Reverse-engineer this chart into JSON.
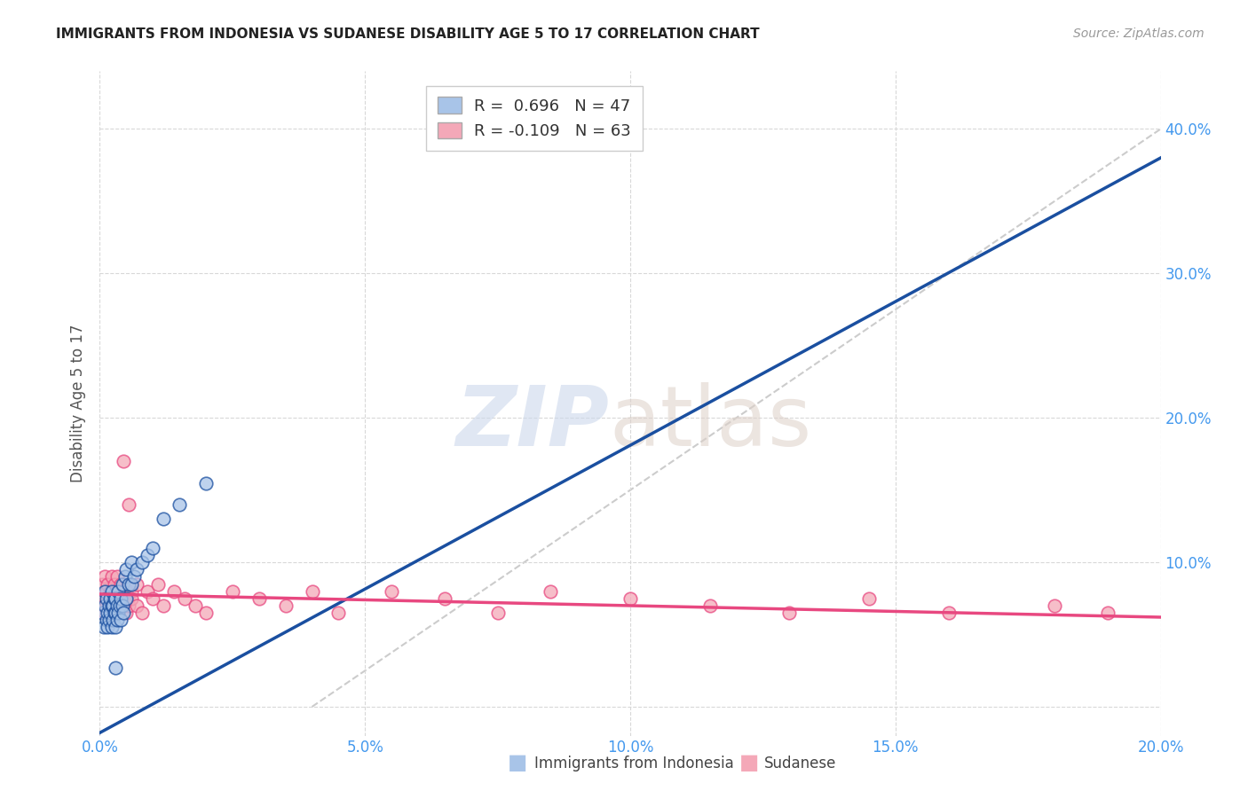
{
  "title": "IMMIGRANTS FROM INDONESIA VS SUDANESE DISABILITY AGE 5 TO 17 CORRELATION CHART",
  "source": "Source: ZipAtlas.com",
  "ylabel": "Disability Age 5 to 17",
  "xlim": [
    0.0,
    0.2
  ],
  "ylim": [
    -0.02,
    0.44
  ],
  "xticks": [
    0.0,
    0.05,
    0.1,
    0.15,
    0.2
  ],
  "yticks": [
    0.0,
    0.1,
    0.2,
    0.3,
    0.4
  ],
  "xtick_labels": [
    "0.0%",
    "5.0%",
    "10.0%",
    "15.0%",
    "20.0%"
  ],
  "ytick_labels": [
    "",
    "10.0%",
    "20.0%",
    "30.0%",
    "40.0%"
  ],
  "background_color": "#ffffff",
  "grid_color": "#d8d8d8",
  "blue_R": "0.696",
  "blue_N": "47",
  "pink_R": "-0.109",
  "pink_N": "63",
  "blue_color": "#a8c4e8",
  "pink_color": "#f4a8b8",
  "blue_line_color": "#1a4fa0",
  "pink_line_color": "#e84880",
  "ref_line_color": "#cccccc",
  "legend_label_blue": "Immigrants from Indonesia",
  "legend_label_pink": "Sudanese",
  "blue_x": [
    0.0005,
    0.0008,
    0.001,
    0.001,
    0.0012,
    0.0013,
    0.0015,
    0.0015,
    0.0017,
    0.0018,
    0.002,
    0.002,
    0.0022,
    0.0022,
    0.0023,
    0.0025,
    0.0025,
    0.0027,
    0.0028,
    0.003,
    0.003,
    0.003,
    0.0032,
    0.0033,
    0.0035,
    0.0035,
    0.0038,
    0.004,
    0.004,
    0.0042,
    0.0043,
    0.0045,
    0.0047,
    0.005,
    0.005,
    0.0055,
    0.006,
    0.006,
    0.0065,
    0.007,
    0.008,
    0.009,
    0.01,
    0.012,
    0.015,
    0.02,
    0.003
  ],
  "blue_y": [
    0.065,
    0.055,
    0.07,
    0.08,
    0.06,
    0.075,
    0.055,
    0.065,
    0.07,
    0.06,
    0.065,
    0.075,
    0.055,
    0.07,
    0.08,
    0.06,
    0.07,
    0.065,
    0.075,
    0.055,
    0.065,
    0.075,
    0.06,
    0.07,
    0.065,
    0.08,
    0.07,
    0.075,
    0.06,
    0.085,
    0.07,
    0.065,
    0.09,
    0.075,
    0.095,
    0.085,
    0.1,
    0.085,
    0.09,
    0.095,
    0.1,
    0.105,
    0.11,
    0.13,
    0.14,
    0.155,
    0.027
  ],
  "pink_x": [
    0.0003,
    0.0005,
    0.0008,
    0.001,
    0.001,
    0.0012,
    0.0013,
    0.0015,
    0.0015,
    0.0017,
    0.0018,
    0.002,
    0.002,
    0.0022,
    0.0023,
    0.0025,
    0.0027,
    0.0028,
    0.003,
    0.003,
    0.0032,
    0.0033,
    0.0035,
    0.0038,
    0.004,
    0.004,
    0.0043,
    0.0045,
    0.005,
    0.005,
    0.0053,
    0.0055,
    0.006,
    0.006,
    0.007,
    0.007,
    0.008,
    0.009,
    0.01,
    0.011,
    0.012,
    0.014,
    0.016,
    0.018,
    0.02,
    0.025,
    0.03,
    0.035,
    0.04,
    0.045,
    0.055,
    0.065,
    0.075,
    0.085,
    0.1,
    0.115,
    0.13,
    0.145,
    0.16,
    0.18,
    0.0045,
    0.0055,
    0.19
  ],
  "pink_y": [
    0.075,
    0.085,
    0.07,
    0.065,
    0.09,
    0.08,
    0.07,
    0.075,
    0.085,
    0.07,
    0.075,
    0.065,
    0.08,
    0.09,
    0.07,
    0.075,
    0.085,
    0.065,
    0.07,
    0.08,
    0.09,
    0.075,
    0.065,
    0.07,
    0.075,
    0.085,
    0.07,
    0.08,
    0.075,
    0.065,
    0.085,
    0.07,
    0.08,
    0.075,
    0.07,
    0.085,
    0.065,
    0.08,
    0.075,
    0.085,
    0.07,
    0.08,
    0.075,
    0.07,
    0.065,
    0.08,
    0.075,
    0.07,
    0.08,
    0.065,
    0.08,
    0.075,
    0.065,
    0.08,
    0.075,
    0.07,
    0.065,
    0.075,
    0.065,
    0.07,
    0.17,
    0.14,
    0.065
  ],
  "blue_trend_x": [
    0.0,
    0.2
  ],
  "blue_trend_y": [
    -0.018,
    0.38
  ],
  "pink_trend_x": [
    0.0,
    0.2
  ],
  "pink_trend_y": [
    0.078,
    0.062
  ]
}
